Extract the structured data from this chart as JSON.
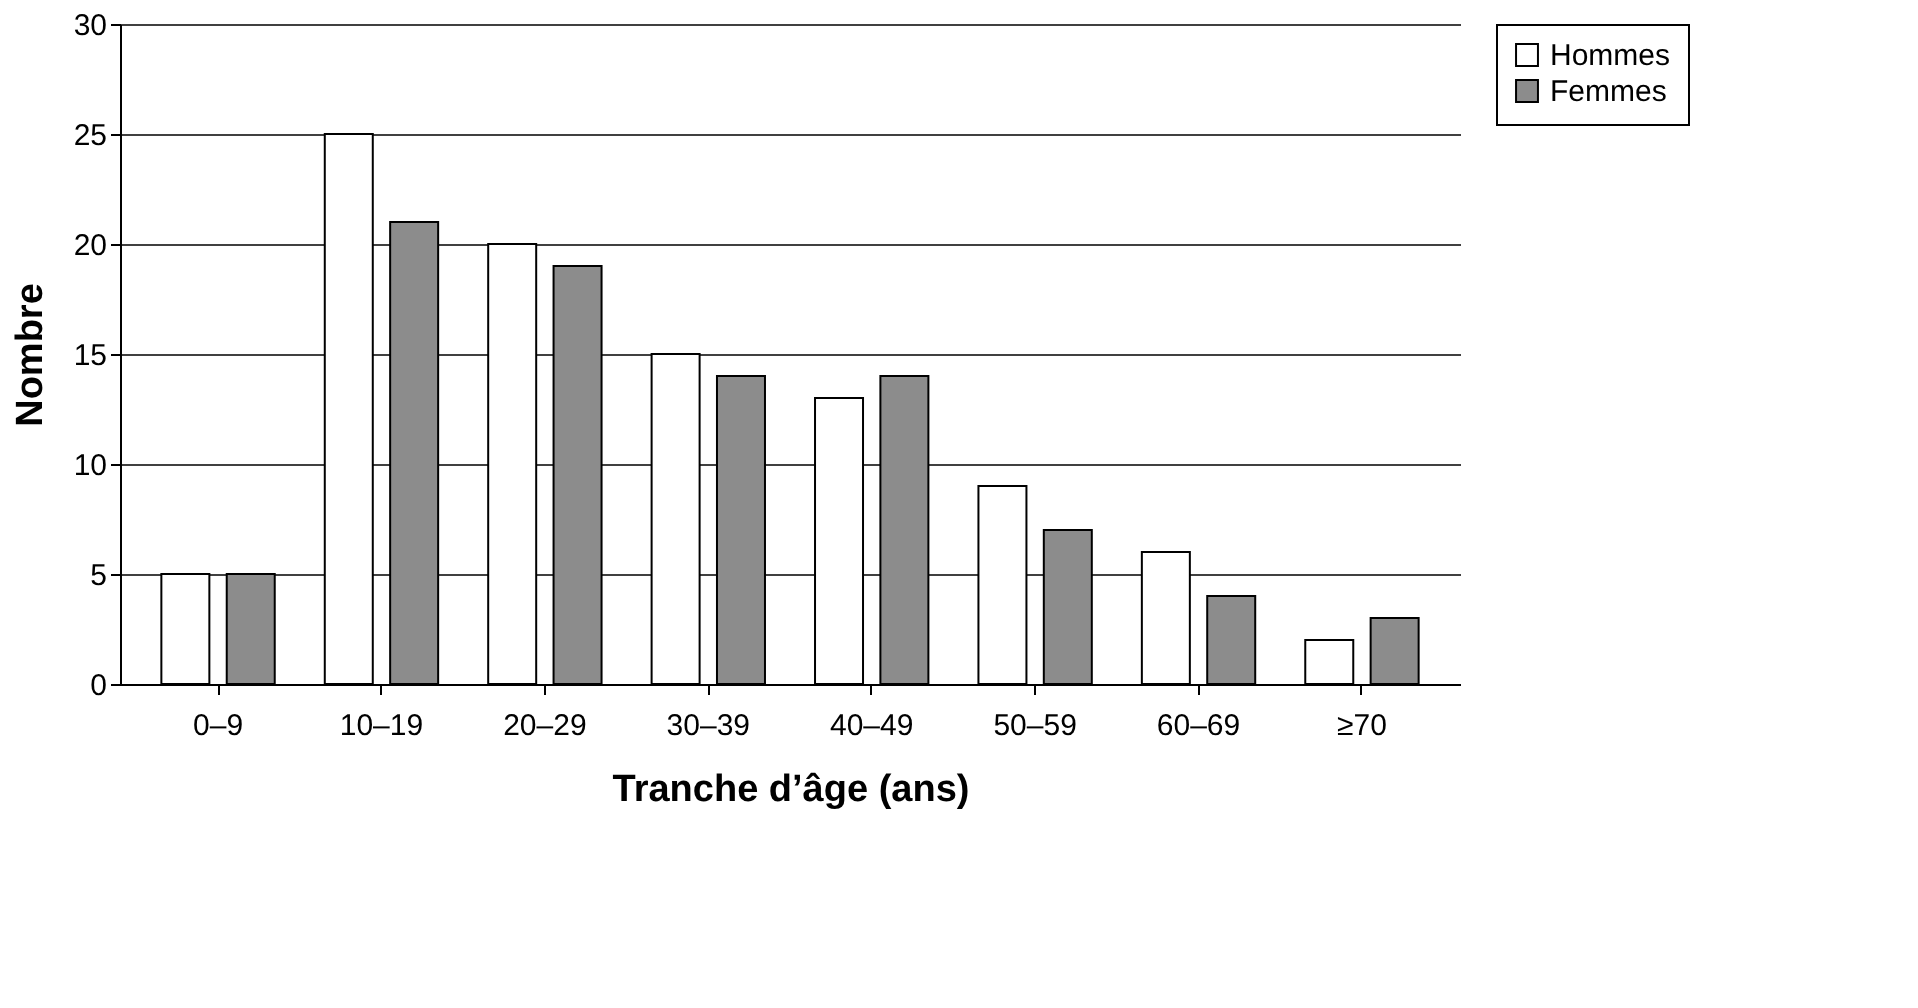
{
  "chart_data": {
    "type": "bar",
    "xlabel": "Tranche d’âge (ans)",
    "ylabel": "Nombre",
    "categories": [
      "0–9",
      "10–19",
      "20–29",
      "30–39",
      "40–49",
      "50–59",
      "60–69",
      "≥70"
    ],
    "series": [
      {
        "name": "Hommes",
        "color": "#ffffff",
        "values": [
          5,
          25,
          20,
          15,
          13,
          9,
          6,
          2
        ]
      },
      {
        "name": "Femmes",
        "color": "#8c8c8c",
        "values": [
          5,
          21,
          19,
          14,
          14,
          7,
          4,
          3
        ]
      }
    ],
    "ylim": [
      0,
      30
    ],
    "yticks": [
      0,
      5,
      10,
      15,
      20,
      25,
      30
    ],
    "grid": "y",
    "legend": "right"
  }
}
